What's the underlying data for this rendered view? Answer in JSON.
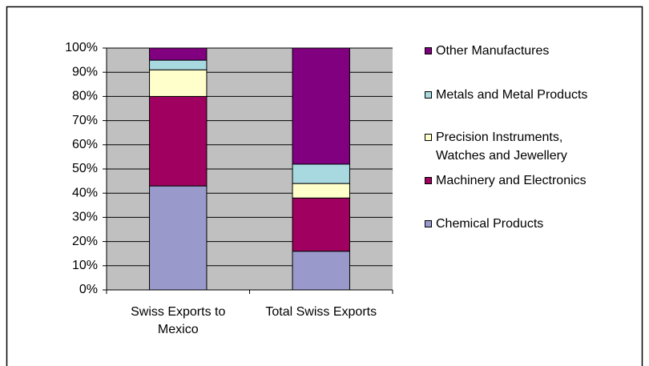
{
  "chart_data": {
    "type": "stacked_bar",
    "categories": [
      "Swiss Exports to Mexico",
      "Total Swiss Exports"
    ],
    "series": [
      {
        "name": "Chemical Products",
        "color": "#9999cc",
        "values": [
          43,
          16
        ]
      },
      {
        "name": "Machinery and Electronics",
        "color": "#a0005f",
        "values": [
          37,
          22
        ]
      },
      {
        "name": "Precision Instruments, Watches and Jewellery",
        "color": "#ffffcc",
        "values": [
          11,
          6
        ]
      },
      {
        "name": "Metals and Metal Products",
        "color": "#a8d8e0",
        "values": [
          4,
          8
        ]
      },
      {
        "name": "Other Manufactures",
        "color": "#800080",
        "values": [
          5,
          48
        ]
      }
    ],
    "ylim": [
      0,
      100
    ],
    "yticks": [
      {
        "value": 0,
        "label": "0%"
      },
      {
        "value": 10,
        "label": "10%"
      },
      {
        "value": 20,
        "label": "20%"
      },
      {
        "value": 30,
        "label": "30%"
      },
      {
        "value": 40,
        "label": "40%"
      },
      {
        "value": 50,
        "label": "50%"
      },
      {
        "value": 60,
        "label": "60%"
      },
      {
        "value": 70,
        "label": "70%"
      },
      {
        "value": 80,
        "label": "80%"
      },
      {
        "value": 90,
        "label": "90%"
      },
      {
        "value": 100,
        "label": "100%"
      }
    ],
    "grid": true,
    "legend": "right"
  }
}
